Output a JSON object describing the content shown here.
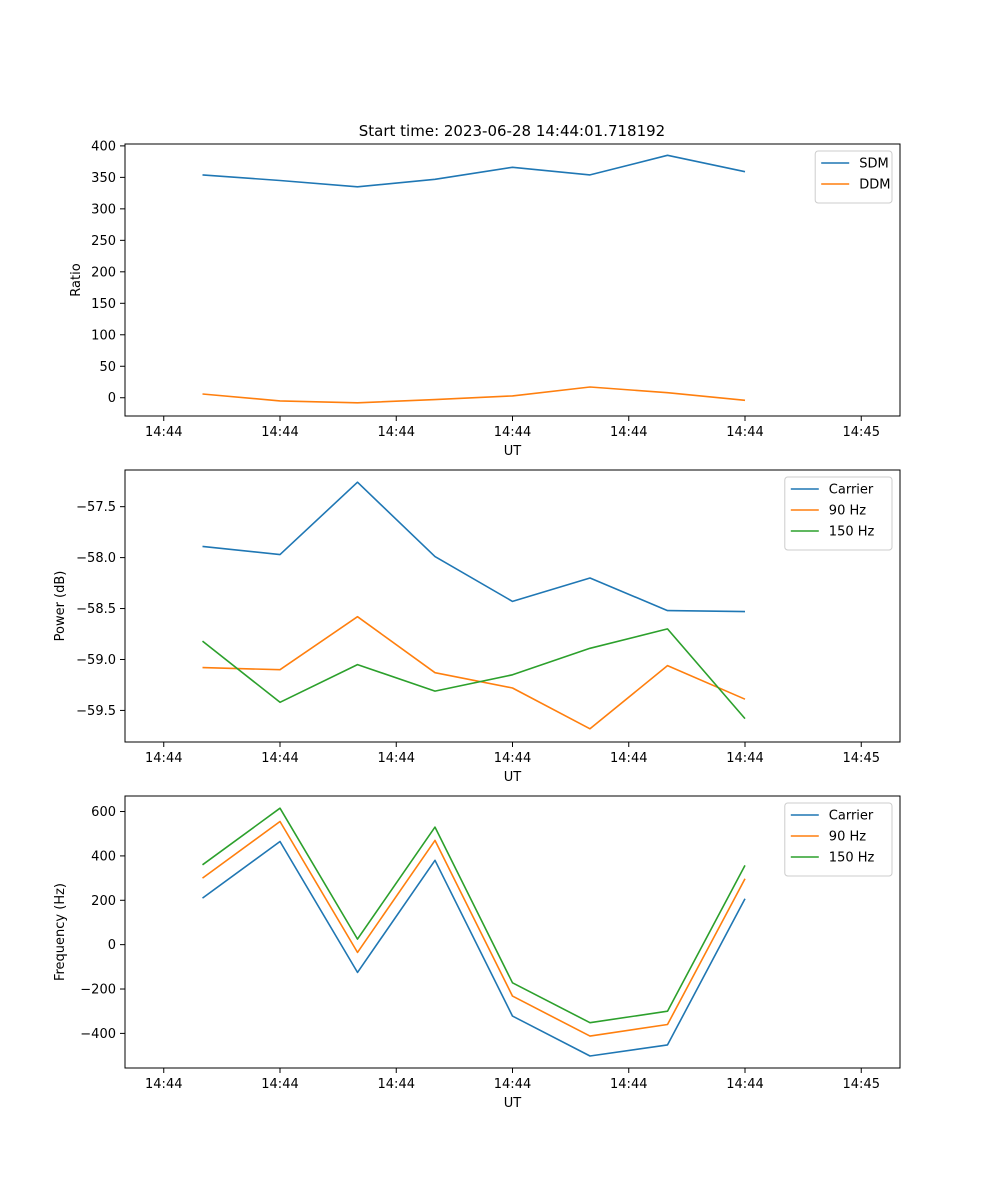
{
  "figure": {
    "title": "Start time: 2023-06-28 14:44:01.718192"
  },
  "chart_data": [
    {
      "type": "line",
      "title": "Start time: 2023-06-28 14:44:01.718192",
      "xlabel": "UT",
      "ylabel": "Ratio",
      "x_ticks": [
        "14:44",
        "14:44",
        "14:44",
        "14:44",
        "14:44",
        "14:44",
        "14:45"
      ],
      "xlim": [
        0,
        10
      ],
      "y_ticks": [
        0,
        50,
        100,
        150,
        200,
        250,
        300,
        350,
        400
      ],
      "ylim": [
        -29,
        403
      ],
      "grid": false,
      "legend": "upper right",
      "x": [
        1,
        2,
        3,
        4,
        5,
        6,
        7,
        8
      ],
      "series": [
        {
          "name": "SDM",
          "color": "#1f77b4",
          "values": [
            354,
            345,
            335,
            347,
            366,
            354,
            385,
            359
          ]
        },
        {
          "name": "DDM",
          "color": "#ff7f0e",
          "values": [
            6,
            -5,
            -8,
            -3,
            3,
            17,
            8,
            -4
          ]
        }
      ]
    },
    {
      "type": "line",
      "xlabel": "UT",
      "ylabel": "Power (dB)",
      "x_ticks": [
        "14:44",
        "14:44",
        "14:44",
        "14:44",
        "14:44",
        "14:44",
        "14:45"
      ],
      "xlim": [
        0,
        10
      ],
      "y_ticks": [
        -57.5,
        -58.0,
        -58.5,
        -59.0,
        -59.5
      ],
      "ylim": [
        -59.81,
        -57.14
      ],
      "grid": false,
      "legend": "upper right",
      "x": [
        1,
        2,
        3,
        4,
        5,
        6,
        7,
        8
      ],
      "series": [
        {
          "name": "Carrier",
          "color": "#1f77b4",
          "values": [
            -57.89,
            -57.97,
            -57.26,
            -57.99,
            -58.43,
            -58.2,
            -58.52,
            -58.53
          ]
        },
        {
          "name": "90 Hz",
          "color": "#ff7f0e",
          "values": [
            -59.08,
            -59.1,
            -58.58,
            -59.13,
            -59.28,
            -59.68,
            -59.06,
            -59.39
          ]
        },
        {
          "name": "150 Hz",
          "color": "#2ca02c",
          "values": [
            -58.82,
            -59.42,
            -59.05,
            -59.31,
            -59.15,
            -58.89,
            -58.7,
            -59.58
          ]
        }
      ]
    },
    {
      "type": "line",
      "xlabel": "UT",
      "ylabel": "Frequency (Hz)",
      "x_ticks": [
        "14:44",
        "14:44",
        "14:44",
        "14:44",
        "14:44",
        "14:44",
        "14:45"
      ],
      "xlim": [
        0,
        10
      ],
      "y_ticks": [
        600,
        400,
        200,
        0,
        -200,
        -400
      ],
      "ylim": [
        -556,
        670
      ],
      "grid": false,
      "legend": "upper right",
      "x": [
        1,
        2,
        3,
        4,
        5,
        6,
        7,
        8
      ],
      "series": [
        {
          "name": "Carrier",
          "color": "#1f77b4",
          "values": [
            210,
            465,
            -125,
            380,
            -322,
            -502,
            -452,
            207
          ]
        },
        {
          "name": "90 Hz",
          "color": "#ff7f0e",
          "values": [
            300,
            555,
            -35,
            470,
            -232,
            -412,
            -360,
            297
          ]
        },
        {
          "name": "150 Hz",
          "color": "#2ca02c",
          "values": [
            360,
            615,
            25,
            530,
            -172,
            -352,
            -300,
            357
          ]
        }
      ]
    }
  ]
}
